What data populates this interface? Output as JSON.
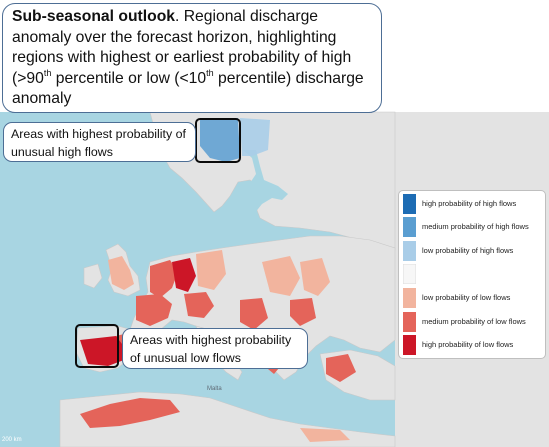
{
  "title": {
    "lead": "Sub-seasonal outlook",
    "segments": [
      ". Regional discharge anomaly over the forecast horizon, highlighting regions with highest or earliest probability of high (>90",
      "th",
      " percentile or low (<10",
      "th",
      " percentile) discharge anomaly"
    ]
  },
  "callouts": {
    "high": "Areas with highest probability of unusual high flows",
    "low": "Areas with highest probability of unusual low flows"
  },
  "legend": {
    "items": [
      {
        "label": "high probability of high flows",
        "color": "#1d6cb4"
      },
      {
        "label": "medium probability of high flows",
        "color": "#5a9ed1"
      },
      {
        "label": "low probability of high flows",
        "color": "#a9cde8"
      },
      {
        "label": "",
        "color": "#f7f7f7"
      },
      {
        "label": "low probability of low flows",
        "color": "#f2b49e"
      },
      {
        "label": "medium probability of low flows",
        "color": "#e4645a"
      },
      {
        "label": "high probability of low flows",
        "color": "#cc1627"
      }
    ]
  },
  "map": {
    "sea_color": "#a8d5e2",
    "land_color": "#e3e3e3",
    "scale_label": "200 km",
    "place_labels": [
      "Malta"
    ]
  }
}
